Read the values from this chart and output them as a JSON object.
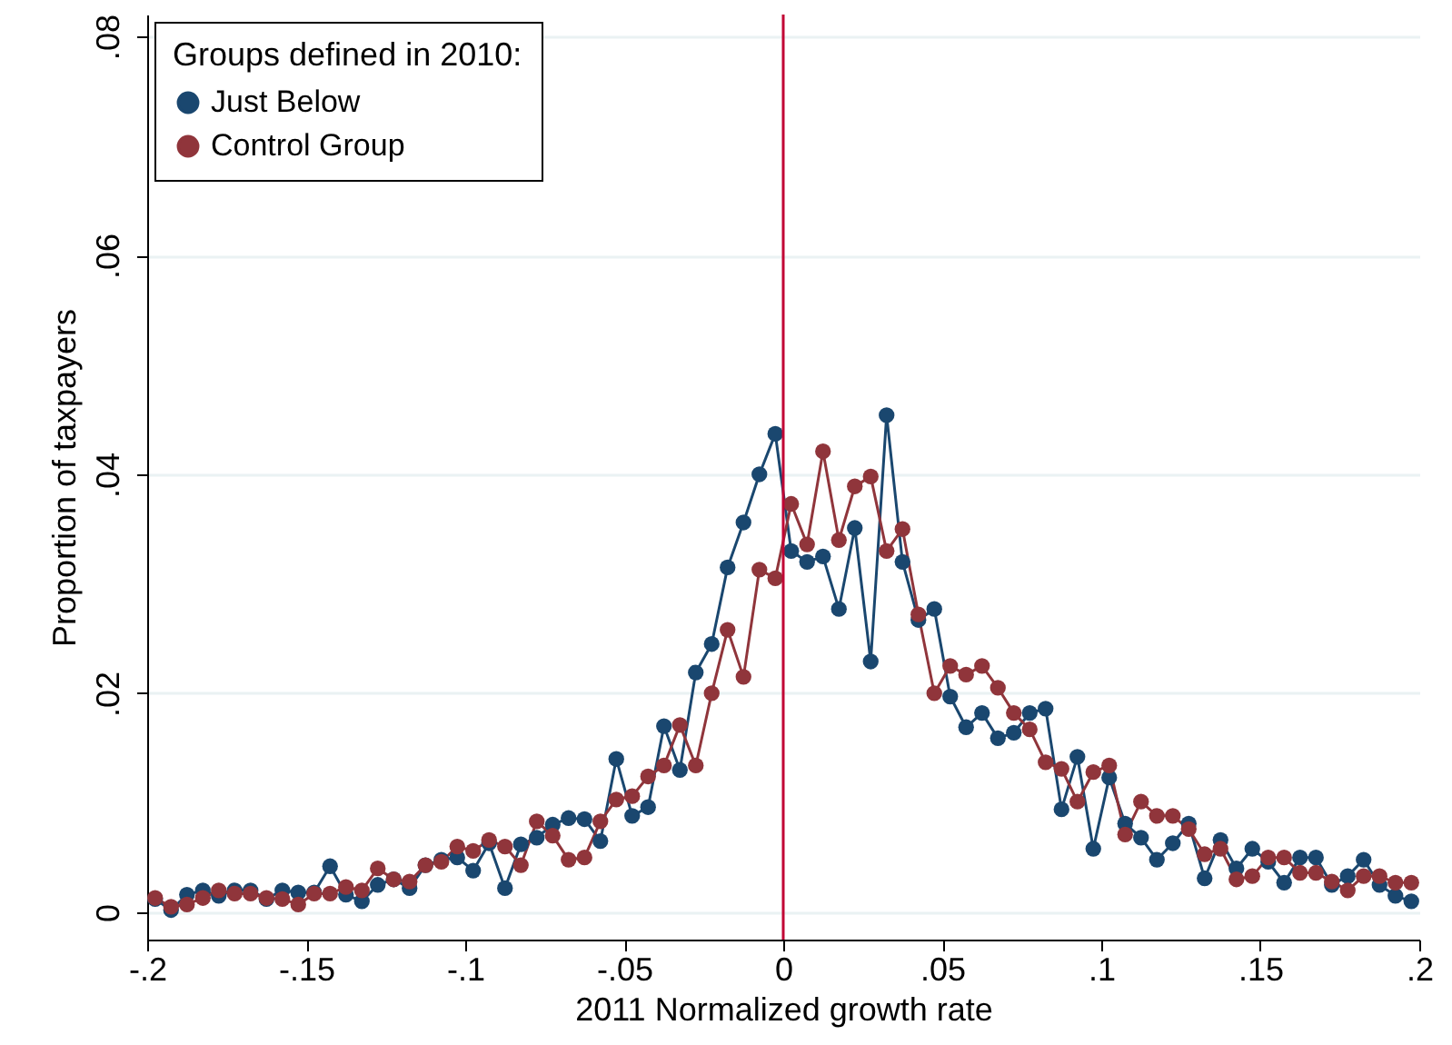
{
  "chart_data": {
    "type": "line",
    "xlabel": "2011 Normalized growth rate",
    "ylabel": "Proportion of taxpayers",
    "legend_title": "Groups defined in 2010:",
    "legend": "top left",
    "grid": "y",
    "marker": "circle",
    "line_style": "solid",
    "xlim": [
      -0.2,
      0.2
    ],
    "ylim": [
      -0.0025,
      0.082
    ],
    "xticks": [
      {
        "value": -0.2,
        "label": "-.2"
      },
      {
        "value": -0.15,
        "label": "-.15"
      },
      {
        "value": -0.1,
        "label": "-.1"
      },
      {
        "value": -0.05,
        "label": "-.05"
      },
      0,
      {
        "value": 0.05,
        "label": ".05"
      },
      {
        "value": 0.1,
        "label": ".1"
      },
      {
        "value": 0.15,
        "label": ".15"
      },
      {
        "value": 0.2,
        "label": ".2"
      }
    ],
    "yticks": [
      0,
      {
        "value": 0.02,
        "label": ".02"
      },
      {
        "value": 0.04,
        "label": ".04"
      },
      {
        "value": 0.06,
        "label": ".06"
      },
      {
        "value": 0.08,
        "label": ".08"
      }
    ],
    "ref_lines": [
      {
        "axis": "x",
        "value": 0,
        "color": "#c10534"
      }
    ],
    "x": [
      -0.1975,
      -0.1925,
      -0.1875,
      -0.1825,
      -0.1775,
      -0.1725,
      -0.1675,
      -0.1625,
      -0.1575,
      -0.1525,
      -0.1475,
      -0.1425,
      -0.1375,
      -0.1325,
      -0.1275,
      -0.1225,
      -0.1175,
      -0.1125,
      -0.1075,
      -0.1025,
      -0.0975,
      -0.0925,
      -0.0875,
      -0.0825,
      -0.0775,
      -0.0725,
      -0.0675,
      -0.0625,
      -0.0575,
      -0.0525,
      -0.0475,
      -0.0425,
      -0.0375,
      -0.0325,
      -0.0275,
      -0.0225,
      -0.0175,
      -0.0125,
      -0.0075,
      -0.0025,
      0.0025,
      0.0075,
      0.0125,
      0.0175,
      0.0225,
      0.0275,
      0.0325,
      0.0375,
      0.0425,
      0.0475,
      0.0525,
      0.0575,
      0.0625,
      0.0675,
      0.0725,
      0.0775,
      0.0825,
      0.0875,
      0.0925,
      0.0975,
      0.1025,
      0.1075,
      0.1125,
      0.1175,
      0.1225,
      0.1275,
      0.1325,
      0.1375,
      0.1425,
      0.1475,
      0.1525,
      0.1575,
      0.1625,
      0.1675,
      0.1725,
      0.1775,
      0.1825,
      0.1875,
      0.1925,
      0.1975
    ],
    "series": [
      {
        "name": "Just Below",
        "color": "#1a476f",
        "values": [
          0.0012,
          0.0002,
          0.0016,
          0.002,
          0.0015,
          0.002,
          0.002,
          0.0012,
          0.002,
          0.0018,
          0.0018,
          0.0042,
          0.0016,
          0.001,
          0.0025,
          0.003,
          0.0022,
          0.0043,
          0.0048,
          0.005,
          0.0038,
          0.0063,
          0.0022,
          0.0062,
          0.0068,
          0.008,
          0.0086,
          0.0085,
          0.0065,
          0.014,
          0.0088,
          0.0096,
          0.017,
          0.013,
          0.0219,
          0.0245,
          0.0315,
          0.0356,
          0.04,
          0.0437,
          0.033,
          0.032,
          0.0325,
          0.0277,
          0.0351,
          0.0229,
          0.0454,
          0.032,
          0.0267,
          0.0277,
          0.0197,
          0.0169,
          0.0182,
          0.0159,
          0.0164,
          0.0182,
          0.0186,
          0.0094,
          0.0142,
          0.0058,
          0.0123,
          0.0081,
          0.0068,
          0.0048,
          0.0063,
          0.0081,
          0.0031,
          0.0066,
          0.004,
          0.0058,
          0.0046,
          0.0027,
          0.005,
          0.005,
          0.0025,
          0.0033,
          0.0048,
          0.0025,
          0.0015,
          0.001
        ]
      },
      {
        "name": "Control Group",
        "color": "#90353b",
        "values": [
          0.0013,
          0.0005,
          0.0007,
          0.0013,
          0.002,
          0.0017,
          0.0017,
          0.0013,
          0.0012,
          0.0007,
          0.0017,
          0.0017,
          0.0023,
          0.002,
          0.004,
          0.003,
          0.0028,
          0.0043,
          0.0046,
          0.006,
          0.0056,
          0.0066,
          0.006,
          0.0043,
          0.0083,
          0.007,
          0.0048,
          0.005,
          0.0083,
          0.0103,
          0.0106,
          0.0124,
          0.0134,
          0.0171,
          0.0134,
          0.02,
          0.0258,
          0.0215,
          0.0313,
          0.0305,
          0.0373,
          0.0336,
          0.0421,
          0.034,
          0.0389,
          0.0398,
          0.033,
          0.035,
          0.0272,
          0.02,
          0.0225,
          0.0217,
          0.0225,
          0.0205,
          0.0182,
          0.0167,
          0.0137,
          0.0131,
          0.0101,
          0.0128,
          0.0134,
          0.0071,
          0.0101,
          0.0088,
          0.0088,
          0.0076,
          0.0053,
          0.0058,
          0.003,
          0.0033,
          0.005,
          0.005,
          0.0036,
          0.0036,
          0.0028,
          0.002,
          0.0033,
          0.0033,
          0.0027,
          0.0027
        ]
      }
    ]
  }
}
